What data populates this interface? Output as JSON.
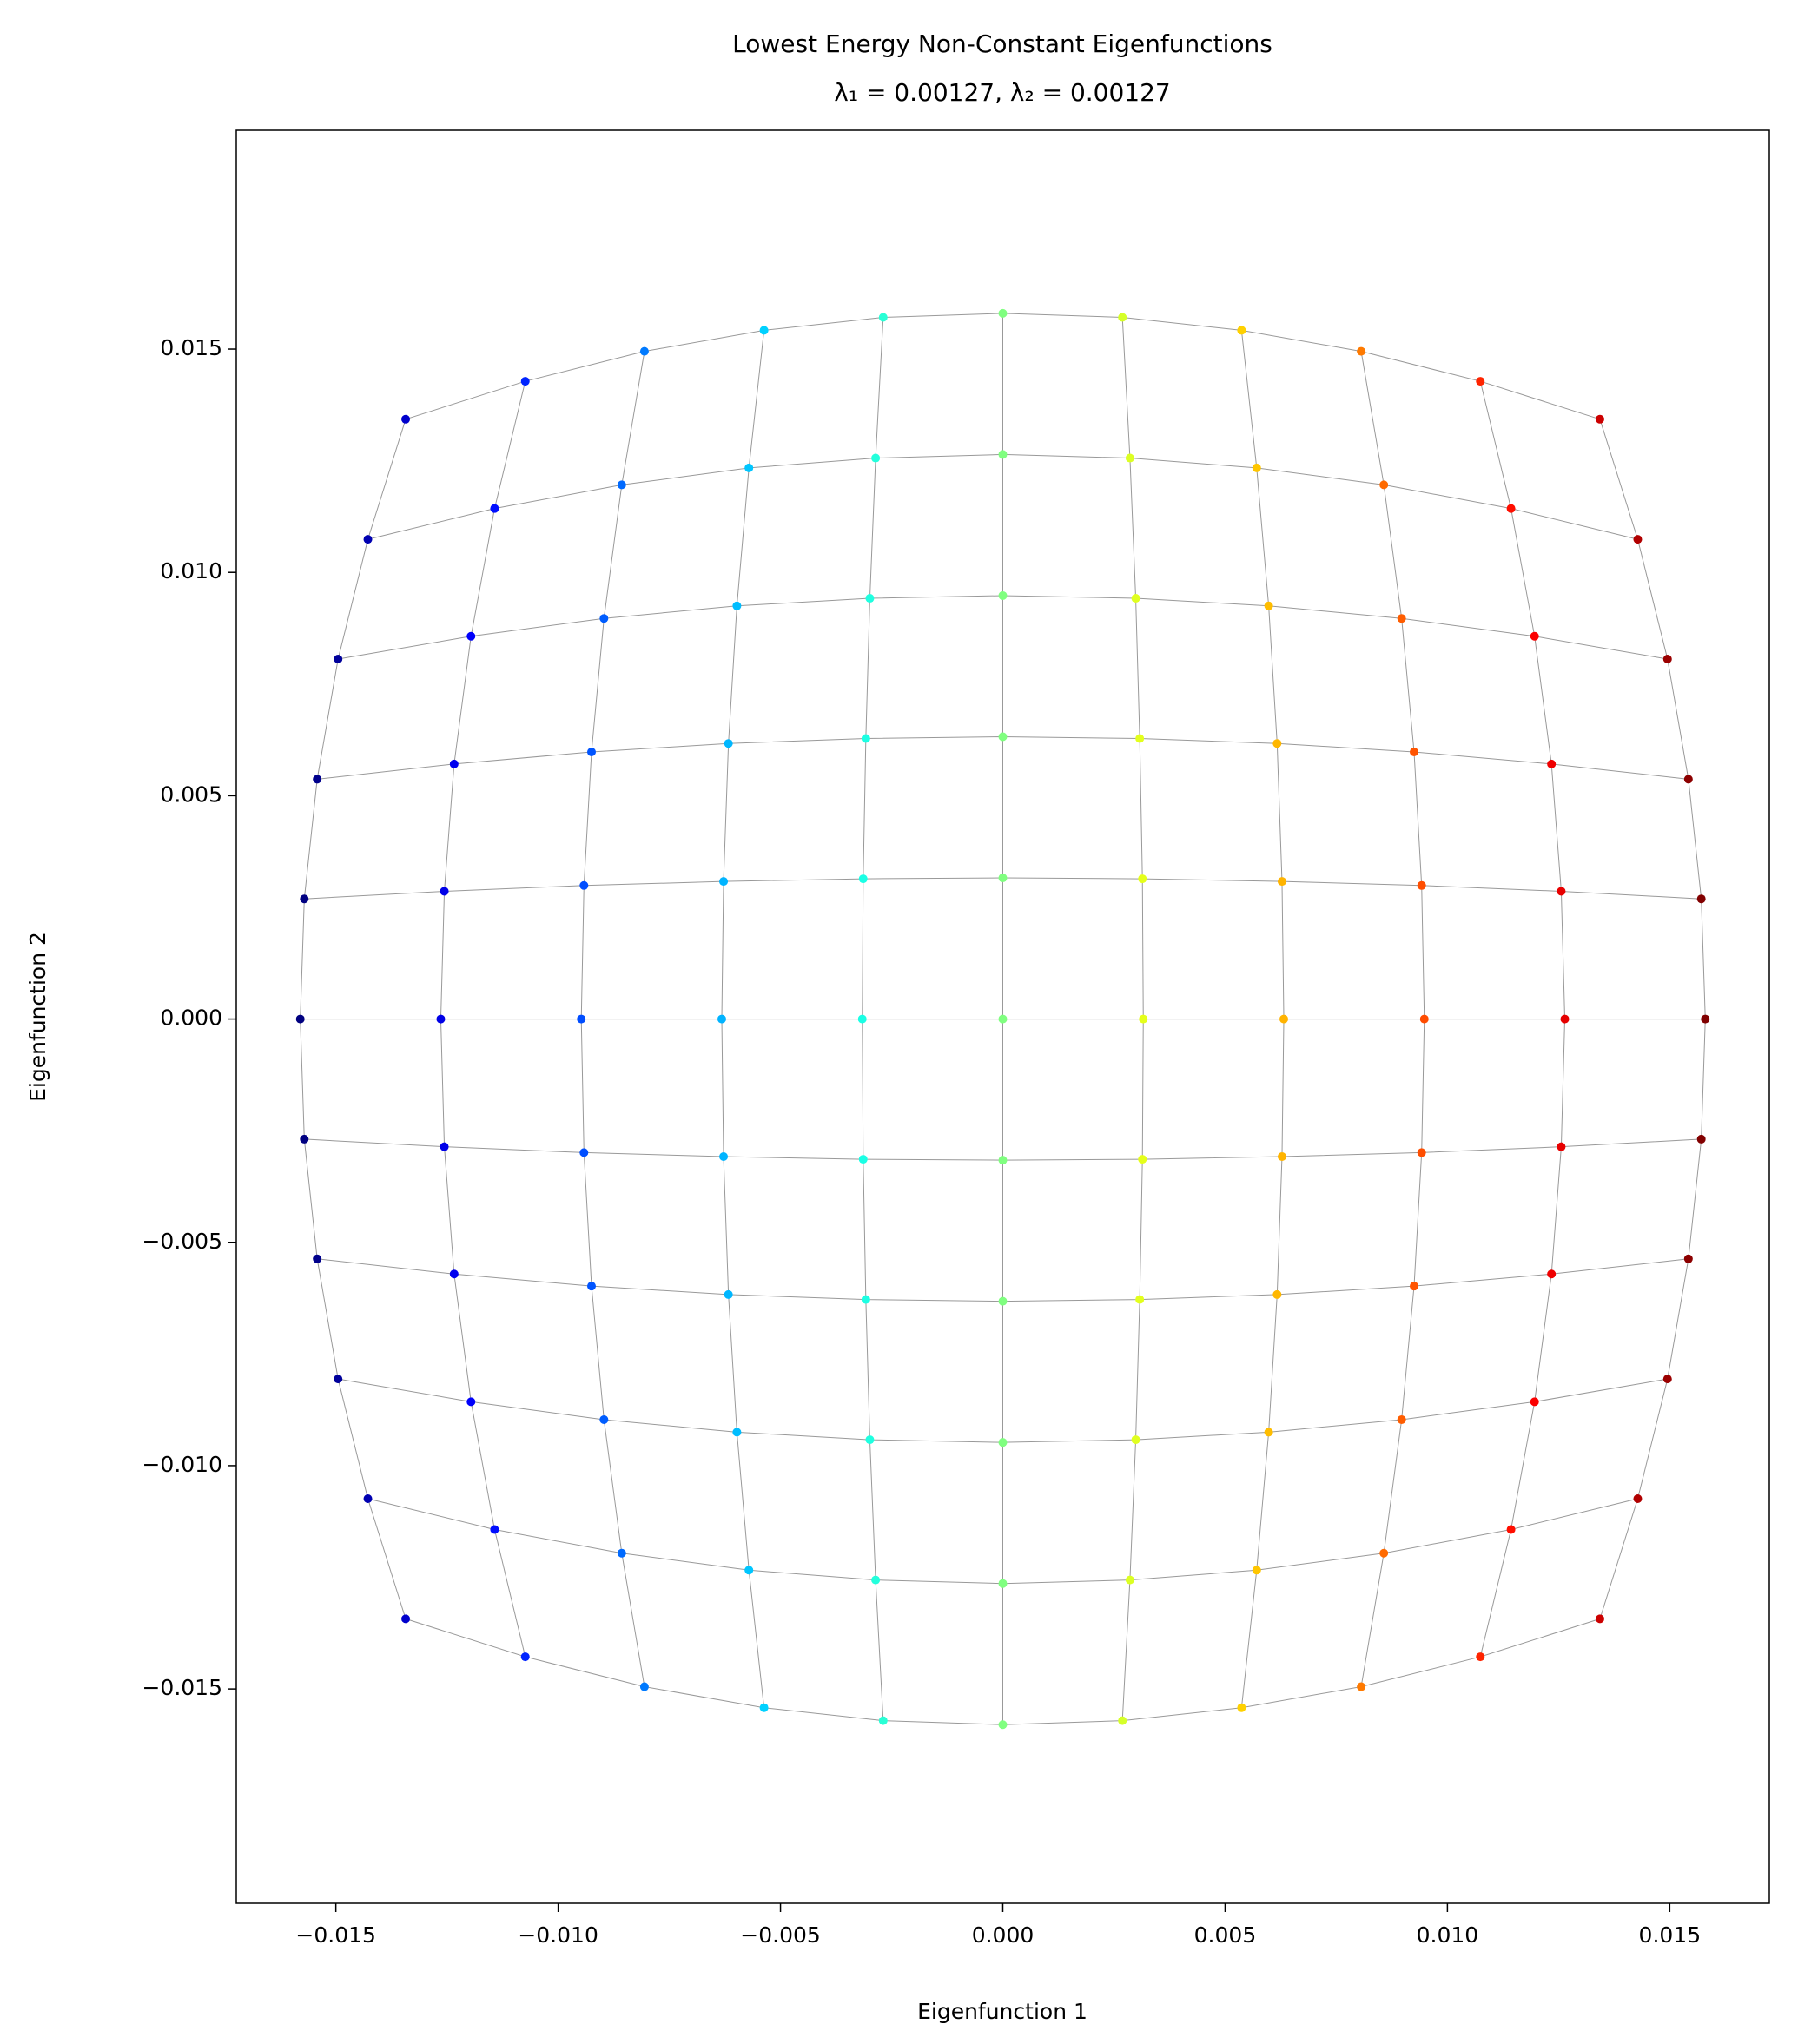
{
  "chart_data": {
    "type": "scatter",
    "title": "Lowest Energy Non-Constant Eigenfunctions",
    "subtitle": "λ₁ = 0.00127, λ₂ = 0.00127",
    "x_label": "Eigenfunction 1",
    "y_label": "Eigenfunction 2",
    "colormap": "jet",
    "edge_color": "#999999",
    "xlim": [
      -0.01724,
      0.01724
    ],
    "ylim": [
      -0.0198,
      0.0199
    ],
    "xticks": [
      {
        "value": -0.015,
        "label": "−0.015"
      },
      {
        "value": -0.01,
        "label": "−0.010"
      },
      {
        "value": -0.005,
        "label": "−0.005"
      },
      {
        "value": 0,
        "label": "0.000"
      },
      {
        "value": 0.005,
        "label": "0.005"
      },
      {
        "value": 0.01,
        "label": "0.010"
      },
      {
        "value": 0.015,
        "label": "0.015"
      }
    ],
    "yticks": [
      {
        "value": -0.015,
        "label": "−0.015"
      },
      {
        "value": -0.01,
        "label": "−0.010"
      },
      {
        "value": -0.005,
        "label": "−0.005"
      },
      {
        "value": 0,
        "label": "0.000"
      },
      {
        "value": 0.005,
        "label": "0.005"
      },
      {
        "value": 0.01,
        "label": "0.010"
      },
      {
        "value": 0.015,
        "label": "0.015"
      }
    ],
    "rows": [
      {
        "x": [
          -0.01343,
          -0.01074,
          -0.00806,
          -0.00537,
          -0.00269,
          0,
          0.00269,
          0.00537,
          0.00806,
          0.01074,
          0.01343
        ],
        "y": [
          0.01343,
          0.01428,
          0.01495,
          0.01542,
          0.01571,
          0.0158,
          0.01571,
          0.01542,
          0.01495,
          0.01428,
          0.01343
        ]
      },
      {
        "x": [
          -0.01428,
          -0.01143,
          -0.00857,
          -0.00571,
          -0.00286,
          0,
          0.00286,
          0.00571,
          0.00857,
          0.01143,
          0.01428
        ],
        "y": [
          0.01074,
          0.01143,
          0.01196,
          0.01234,
          0.01256,
          0.01264,
          0.01256,
          0.01234,
          0.01196,
          0.01143,
          0.01074
        ]
      },
      {
        "x": [
          -0.01495,
          -0.01196,
          -0.00897,
          -0.00598,
          -0.00299,
          0,
          0.00299,
          0.00598,
          0.00897,
          0.01196,
          0.01495
        ],
        "y": [
          0.00806,
          0.00857,
          0.00897,
          0.00925,
          0.00942,
          0.00948,
          0.00942,
          0.00925,
          0.00897,
          0.00857,
          0.00806
        ]
      },
      {
        "x": [
          -0.01542,
          -0.01234,
          -0.00925,
          -0.00617,
          -0.00308,
          0,
          0.00308,
          0.00617,
          0.00925,
          0.01234,
          0.01542
        ],
        "y": [
          0.00537,
          0.00571,
          0.00598,
          0.00617,
          0.00628,
          0.00632,
          0.00628,
          0.00617,
          0.00598,
          0.00571,
          0.00537
        ]
      },
      {
        "x": [
          -0.01571,
          -0.01256,
          -0.00942,
          -0.00628,
          -0.00314,
          0,
          0.00314,
          0.00628,
          0.00942,
          0.01256,
          0.01571
        ],
        "y": [
          0.00269,
          0.00286,
          0.00299,
          0.00308,
          0.00314,
          0.00316,
          0.00314,
          0.00308,
          0.00299,
          0.00286,
          0.00269
        ]
      },
      {
        "x": [
          -0.0158,
          -0.01264,
          -0.00948,
          -0.00632,
          -0.00316,
          0,
          0.00316,
          0.00632,
          0.00948,
          0.01264,
          0.0158
        ],
        "y": [
          0,
          0,
          0,
          0,
          0,
          0,
          0,
          0,
          0,
          0,
          0
        ]
      },
      {
        "x": [
          -0.01571,
          -0.01256,
          -0.00942,
          -0.00628,
          -0.00314,
          0,
          0.00314,
          0.00628,
          0.00942,
          0.01256,
          0.01571
        ],
        "y": [
          -0.00269,
          -0.00286,
          -0.00299,
          -0.00308,
          -0.00314,
          -0.00316,
          -0.00314,
          -0.00308,
          -0.00299,
          -0.00286,
          -0.00269
        ]
      },
      {
        "x": [
          -0.01542,
          -0.01234,
          -0.00925,
          -0.00617,
          -0.00308,
          0,
          0.00308,
          0.00617,
          0.00925,
          0.01234,
          0.01542
        ],
        "y": [
          -0.00537,
          -0.00571,
          -0.00598,
          -0.00617,
          -0.00628,
          -0.00632,
          -0.00628,
          -0.00617,
          -0.00598,
          -0.00571,
          -0.00537
        ]
      },
      {
        "x": [
          -0.01495,
          -0.01196,
          -0.00897,
          -0.00598,
          -0.00299,
          0,
          0.00299,
          0.00598,
          0.00897,
          0.01196,
          0.01495
        ],
        "y": [
          -0.00806,
          -0.00857,
          -0.00897,
          -0.00925,
          -0.00942,
          -0.00948,
          -0.00942,
          -0.00925,
          -0.00897,
          -0.00857,
          -0.00806
        ]
      },
      {
        "x": [
          -0.01428,
          -0.01143,
          -0.00857,
          -0.00571,
          -0.00286,
          0,
          0.00286,
          0.00571,
          0.00857,
          0.01143,
          0.01428
        ],
        "y": [
          -0.01074,
          -0.01143,
          -0.01196,
          -0.01234,
          -0.01256,
          -0.01264,
          -0.01256,
          -0.01234,
          -0.01196,
          -0.01143,
          -0.01074
        ]
      },
      {
        "x": [
          -0.01343,
          -0.01074,
          -0.00806,
          -0.00537,
          -0.00269,
          0,
          0.00269,
          0.00537,
          0.00806,
          0.01074,
          0.01343
        ],
        "y": [
          -0.01343,
          -0.01428,
          -0.01495,
          -0.01542,
          -0.01571,
          -0.0158,
          -0.01571,
          -0.01542,
          -0.01495,
          -0.01428,
          -0.01343
        ]
      }
    ]
  }
}
